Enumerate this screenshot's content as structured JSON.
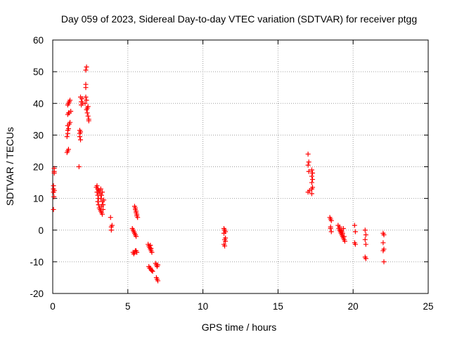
{
  "chart_data": {
    "type": "scatter",
    "title": "Day 059 of 2023, Sidereal Day-to-day VTEC variation (SDTVAR) for receiver ptgg",
    "xlabel": "GPS time / hours",
    "ylabel": "SDTVAR / TECUs",
    "xlim": [
      0,
      25
    ],
    "ylim": [
      -20,
      60
    ],
    "xticks": [
      0,
      5,
      10,
      15,
      20,
      25
    ],
    "yticks": [
      -20,
      -10,
      0,
      10,
      20,
      30,
      40,
      50,
      60
    ],
    "grid": true,
    "marker": "+",
    "color": "#ff0000",
    "series": [
      {
        "name": "SDTVAR",
        "points": [
          [
            0.05,
            6.5
          ],
          [
            0.05,
            12
          ],
          [
            0.05,
            13
          ],
          [
            0.1,
            12.5
          ],
          [
            0.1,
            18
          ],
          [
            0.1,
            18.5
          ],
          [
            0.1,
            19.5
          ],
          [
            0.08,
            10.5
          ],
          [
            0.05,
            14
          ],
          [
            0.95,
            24.5
          ],
          [
            1.0,
            25
          ],
          [
            1.05,
            25.5
          ],
          [
            0.95,
            29.5
          ],
          [
            1.0,
            30.5
          ],
          [
            1.0,
            31.5
          ],
          [
            1.05,
            32
          ],
          [
            1.0,
            33
          ],
          [
            1.1,
            33.5
          ],
          [
            1.15,
            34
          ],
          [
            1.0,
            36.5
          ],
          [
            1.05,
            37
          ],
          [
            1.1,
            37
          ],
          [
            1.2,
            37.5
          ],
          [
            1.0,
            39.5
          ],
          [
            1.05,
            40
          ],
          [
            1.1,
            40.5
          ],
          [
            1.15,
            41
          ],
          [
            1.75,
            20
          ],
          [
            1.85,
            28.5
          ],
          [
            1.8,
            29.5
          ],
          [
            1.8,
            30.5
          ],
          [
            1.85,
            31
          ],
          [
            1.8,
            31.5
          ],
          [
            1.9,
            40.5
          ],
          [
            1.95,
            41.5
          ],
          [
            1.85,
            42
          ],
          [
            1.9,
            39.5
          ],
          [
            2.0,
            40
          ],
          [
            2.15,
            40
          ],
          [
            2.2,
            42
          ],
          [
            2.2,
            45
          ],
          [
            2.2,
            46
          ],
          [
            2.2,
            50.5
          ],
          [
            2.25,
            51.5
          ],
          [
            2.25,
            38
          ],
          [
            2.3,
            37
          ],
          [
            2.35,
            36
          ],
          [
            2.4,
            35
          ],
          [
            2.4,
            34.5
          ],
          [
            2.3,
            38.5
          ],
          [
            2.35,
            39
          ],
          [
            2.25,
            41
          ],
          [
            2.9,
            13.5
          ],
          [
            2.95,
            14
          ],
          [
            3.0,
            13
          ],
          [
            2.95,
            12
          ],
          [
            3.0,
            11
          ],
          [
            3.05,
            10
          ],
          [
            3.0,
            9
          ],
          [
            3.05,
            8
          ],
          [
            3.1,
            7
          ],
          [
            3.15,
            6.5
          ],
          [
            3.2,
            6
          ],
          [
            3.25,
            5.5
          ],
          [
            3.3,
            5
          ],
          [
            3.1,
            12.5
          ],
          [
            3.2,
            13
          ],
          [
            3.3,
            12
          ],
          [
            3.25,
            11
          ],
          [
            3.2,
            10
          ],
          [
            3.3,
            9
          ],
          [
            3.35,
            8
          ],
          [
            3.4,
            9.5
          ],
          [
            3.15,
            11.5
          ],
          [
            3.05,
            12.5
          ],
          [
            3.25,
            7.5
          ],
          [
            3.35,
            6.5
          ],
          [
            3.85,
            4
          ],
          [
            3.9,
            1
          ],
          [
            3.9,
            0
          ],
          [
            3.95,
            1.5
          ],
          [
            5.3,
            0.5
          ],
          [
            5.35,
            0
          ],
          [
            5.4,
            -0.5
          ],
          [
            5.45,
            -1
          ],
          [
            5.5,
            -1.5
          ],
          [
            5.55,
            -2
          ],
          [
            5.35,
            -7
          ],
          [
            5.4,
            -7.5
          ],
          [
            5.45,
            -7
          ],
          [
            5.5,
            -6.5
          ],
          [
            5.55,
            -6.5
          ],
          [
            5.6,
            -7
          ],
          [
            5.45,
            7.5
          ],
          [
            5.5,
            7
          ],
          [
            5.5,
            6.5
          ],
          [
            5.55,
            6
          ],
          [
            5.55,
            5.5
          ],
          [
            5.6,
            5
          ],
          [
            5.6,
            4.5
          ],
          [
            5.65,
            4
          ],
          [
            6.35,
            -4.5
          ],
          [
            6.4,
            -5
          ],
          [
            6.45,
            -5.5
          ],
          [
            6.5,
            -6
          ],
          [
            6.55,
            -6.5
          ],
          [
            6.6,
            -7
          ],
          [
            6.5,
            -4.8
          ],
          [
            6.55,
            -5.8
          ],
          [
            6.4,
            -11.5
          ],
          [
            6.45,
            -12
          ],
          [
            6.5,
            -12
          ],
          [
            6.55,
            -12.5
          ],
          [
            6.6,
            -12.8
          ],
          [
            6.65,
            -13
          ],
          [
            6.85,
            -10.5
          ],
          [
            6.9,
            -11
          ],
          [
            6.95,
            -11.5
          ],
          [
            7.0,
            -11
          ],
          [
            6.9,
            -15
          ],
          [
            6.95,
            -15.5
          ],
          [
            7.0,
            -16
          ],
          [
            11.4,
            0.5
          ],
          [
            11.45,
            0
          ],
          [
            11.5,
            -0.5
          ],
          [
            11.4,
            -1
          ],
          [
            11.45,
            -3
          ],
          [
            11.5,
            -3.5
          ],
          [
            11.4,
            -4.5
          ],
          [
            11.45,
            -5
          ],
          [
            11.5,
            -2.5
          ],
          [
            17.0,
            24
          ],
          [
            17.05,
            21.5
          ],
          [
            17.0,
            20.5
          ],
          [
            17.05,
            18.5
          ],
          [
            17.0,
            12
          ],
          [
            17.1,
            12.5
          ],
          [
            17.25,
            11.5
          ],
          [
            17.25,
            13
          ],
          [
            17.3,
            13.5
          ],
          [
            17.25,
            17
          ],
          [
            17.3,
            18
          ],
          [
            17.25,
            19
          ],
          [
            17.3,
            16
          ],
          [
            17.25,
            15
          ],
          [
            18.45,
            4
          ],
          [
            18.5,
            3.5
          ],
          [
            18.55,
            3
          ],
          [
            18.5,
            0.5
          ],
          [
            18.55,
            -0.5
          ],
          [
            18.5,
            1
          ],
          [
            19.0,
            1.5
          ],
          [
            19.05,
            0.5
          ],
          [
            19.1,
            0
          ],
          [
            19.15,
            -0.5
          ],
          [
            19.2,
            -1
          ],
          [
            19.25,
            -1.5
          ],
          [
            19.3,
            -2
          ],
          [
            19.35,
            -2.5
          ],
          [
            19.4,
            -3
          ],
          [
            19.45,
            -3.5
          ],
          [
            19.1,
            1
          ],
          [
            19.2,
            0
          ],
          [
            19.3,
            -1
          ],
          [
            19.4,
            -2
          ],
          [
            19.35,
            0.5
          ],
          [
            19.25,
            -0.5
          ],
          [
            20.1,
            1.5
          ],
          [
            20.15,
            -0.5
          ],
          [
            20.1,
            -4
          ],
          [
            20.15,
            -4.5
          ],
          [
            20.8,
            0
          ],
          [
            20.85,
            -1.5
          ],
          [
            20.8,
            -3
          ],
          [
            20.85,
            -4.5
          ],
          [
            20.8,
            -8.5
          ],
          [
            20.85,
            -9
          ],
          [
            22.0,
            -1
          ],
          [
            22.05,
            -1.5
          ],
          [
            22.0,
            -4
          ],
          [
            22.05,
            -6
          ],
          [
            22.0,
            -6.5
          ],
          [
            22.05,
            -10
          ]
        ]
      }
    ]
  }
}
